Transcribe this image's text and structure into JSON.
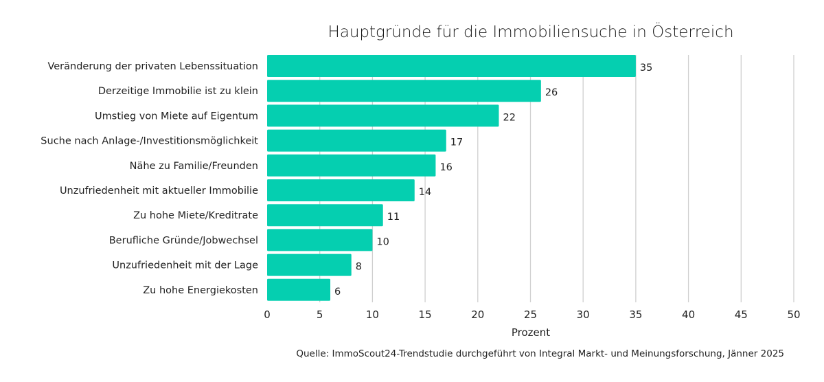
{
  "chart_data": {
    "type": "bar",
    "orientation": "horizontal",
    "title": "Hauptgründe für die Immobiliensuche in Österreich",
    "xlabel": "Prozent",
    "ylabel": "",
    "xlim": [
      0,
      50
    ],
    "xticks": [
      0,
      5,
      10,
      15,
      20,
      25,
      30,
      35,
      40,
      45,
      50
    ],
    "grid": "vertical",
    "bar_color": "#05cfb0",
    "categories": [
      "Veränderung der privaten Lebenssituation",
      "Derzeitige Immobilie ist zu klein",
      "Umstieg von Miete auf Eigentum",
      "Suche nach Anlage-/Investitionsmöglichkeit",
      "Nähe zu Familie/Freunden",
      "Unzufriedenheit mit aktueller Immobilie",
      "Zu hohe Miete/Kreditrate",
      "Berufliche Gründe/Jobwechsel",
      "Unzufriedenheit mit der Lage",
      "Zu hohe Energiekosten"
    ],
    "values": [
      35,
      26,
      22,
      17,
      16,
      14,
      11,
      10,
      8,
      6
    ],
    "source": "Quelle: ImmoScout24-Trendstudie durchgeführt von Integral Markt- und Meinungsforschung, Jänner 2025"
  }
}
